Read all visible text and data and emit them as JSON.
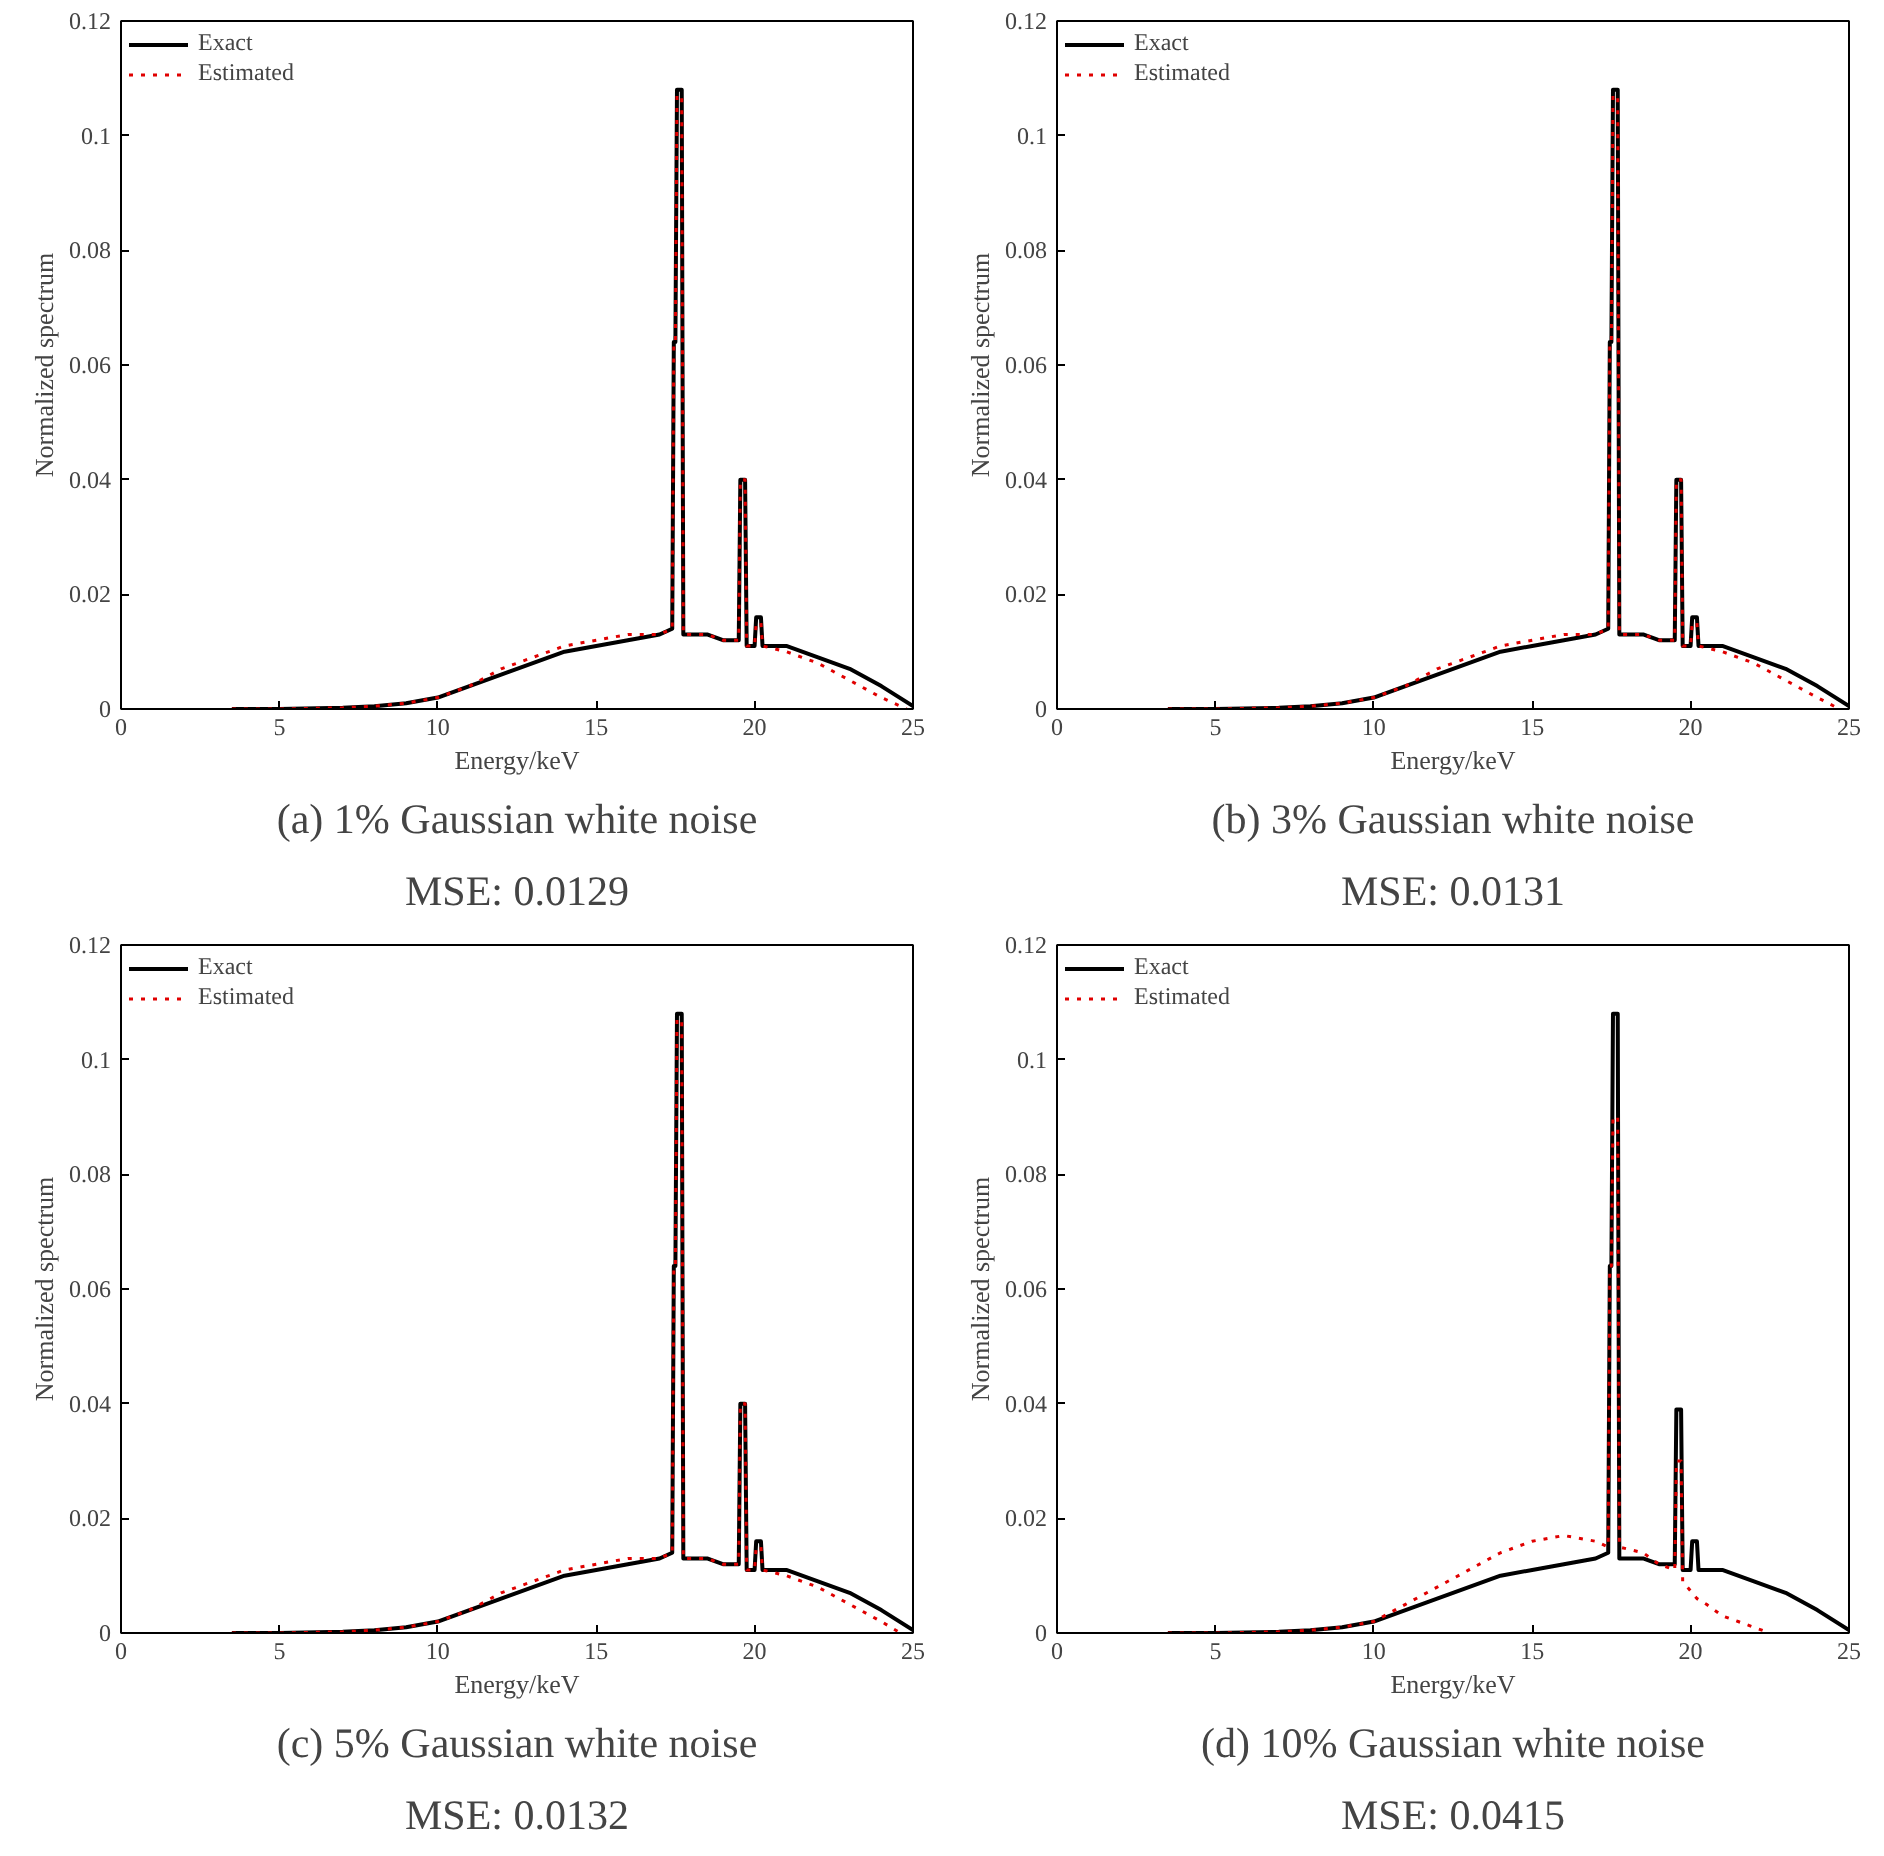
{
  "chart_data": [
    {
      "type": "line",
      "title": "(a) 1% Gaussian white noise",
      "subtitle": "MSE: 0.0129",
      "xlabel": "Energy/keV",
      "ylabel": "Normalized spectrum",
      "xlim": [
        0,
        25
      ],
      "xticks": [
        0,
        5,
        10,
        15,
        20,
        25
      ],
      "ylim": [
        0,
        0.12
      ],
      "yticks": [
        0,
        0.02,
        0.04,
        0.06,
        0.08,
        0.1,
        0.12
      ],
      "legend": "top left",
      "series": [
        {
          "name": "Exact",
          "color": "#000000",
          "line_style": "solid",
          "x": [
            3.5,
            5,
            7,
            8,
            9,
            10,
            11,
            12,
            13,
            14,
            15,
            16,
            17,
            17.4,
            17.45,
            17.5,
            17.55,
            17.7,
            17.75,
            18.5,
            19,
            19.5,
            19.55,
            19.7,
            19.75,
            20.0,
            20.05,
            20.2,
            20.25,
            21,
            22,
            23,
            24,
            25
          ],
          "values": [
            0,
            0,
            0.0002,
            0.0005,
            0.001,
            0.002,
            0.004,
            0.006,
            0.008,
            0.01,
            0.011,
            0.012,
            0.013,
            0.014,
            0.064,
            0.064,
            0.108,
            0.108,
            0.013,
            0.013,
            0.012,
            0.012,
            0.04,
            0.04,
            0.011,
            0.011,
            0.016,
            0.016,
            0.011,
            0.011,
            0.009,
            0.007,
            0.004,
            0.0005
          ]
        },
        {
          "name": "Estimated",
          "color": "#e00000",
          "line_style": "dotted",
          "x": [
            3.5,
            5,
            7,
            8,
            9,
            10,
            11,
            12,
            13,
            14,
            15,
            16,
            17,
            17.4,
            17.45,
            17.5,
            17.55,
            17.7,
            17.75,
            18.5,
            19,
            19.5,
            19.55,
            19.7,
            19.75,
            20.0,
            20.05,
            20.2,
            20.25,
            21,
            22,
            23,
            24,
            24.8
          ],
          "values": [
            0,
            0,
            0.0002,
            0.0005,
            0.001,
            0.002,
            0.004,
            0.007,
            0.009,
            0.011,
            0.012,
            0.013,
            0.013,
            0.014,
            0.064,
            0.064,
            0.107,
            0.107,
            0.013,
            0.013,
            0.012,
            0.012,
            0.04,
            0.04,
            0.011,
            0.011,
            0.015,
            0.015,
            0.011,
            0.01,
            0.008,
            0.005,
            0.002,
            0
          ]
        }
      ]
    },
    {
      "type": "line",
      "title": "(b) 3% Gaussian white noise",
      "subtitle": "MSE: 0.0131",
      "xlabel": "Energy/keV",
      "ylabel": "Normalized spectrum",
      "xlim": [
        0,
        25
      ],
      "xticks": [
        0,
        5,
        10,
        15,
        20,
        25
      ],
      "ylim": [
        0,
        0.12
      ],
      "yticks": [
        0,
        0.02,
        0.04,
        0.06,
        0.08,
        0.1,
        0.12
      ],
      "legend": "top left",
      "series": [
        {
          "name": "Exact",
          "color": "#000000",
          "line_style": "solid",
          "x": [
            3.5,
            5,
            7,
            8,
            9,
            10,
            11,
            12,
            13,
            14,
            15,
            16,
            17,
            17.4,
            17.45,
            17.5,
            17.55,
            17.7,
            17.75,
            18.5,
            19,
            19.5,
            19.55,
            19.7,
            19.75,
            20.0,
            20.05,
            20.2,
            20.25,
            21,
            22,
            23,
            24,
            25
          ],
          "values": [
            0,
            0,
            0.0002,
            0.0005,
            0.001,
            0.002,
            0.004,
            0.006,
            0.008,
            0.01,
            0.011,
            0.012,
            0.013,
            0.014,
            0.064,
            0.064,
            0.108,
            0.108,
            0.013,
            0.013,
            0.012,
            0.012,
            0.04,
            0.04,
            0.011,
            0.011,
            0.016,
            0.016,
            0.011,
            0.011,
            0.009,
            0.007,
            0.004,
            0.0005
          ]
        },
        {
          "name": "Estimated",
          "color": "#e00000",
          "line_style": "dotted",
          "x": [
            3.5,
            5,
            7,
            8,
            9,
            10,
            11,
            12,
            13,
            14,
            15,
            16,
            17,
            17.4,
            17.45,
            17.5,
            17.55,
            17.7,
            17.75,
            18.5,
            19,
            19.5,
            19.55,
            19.7,
            19.75,
            20.0,
            20.05,
            20.2,
            20.25,
            21,
            22,
            23,
            24,
            24.7
          ],
          "values": [
            0,
            0,
            0.0002,
            0.0005,
            0.001,
            0.002,
            0.004,
            0.007,
            0.009,
            0.011,
            0.012,
            0.013,
            0.013,
            0.014,
            0.064,
            0.064,
            0.107,
            0.107,
            0.013,
            0.013,
            0.012,
            0.012,
            0.04,
            0.04,
            0.011,
            0.011,
            0.015,
            0.015,
            0.011,
            0.01,
            0.008,
            0.005,
            0.002,
            0
          ]
        }
      ]
    },
    {
      "type": "line",
      "title": "(c) 5% Gaussian white noise",
      "subtitle": "MSE: 0.0132",
      "xlabel": "Energy/keV",
      "ylabel": "Normalized spectrum",
      "xlim": [
        0,
        25
      ],
      "xticks": [
        0,
        5,
        10,
        15,
        20,
        25
      ],
      "ylim": [
        0,
        0.12
      ],
      "yticks": [
        0,
        0.02,
        0.04,
        0.06,
        0.08,
        0.1,
        0.12
      ],
      "legend": "top left",
      "series": [
        {
          "name": "Exact",
          "color": "#000000",
          "line_style": "solid",
          "x": [
            3.5,
            5,
            7,
            8,
            9,
            10,
            11,
            12,
            13,
            14,
            15,
            16,
            17,
            17.4,
            17.45,
            17.5,
            17.55,
            17.7,
            17.75,
            18.5,
            19,
            19.5,
            19.55,
            19.7,
            19.75,
            20.0,
            20.05,
            20.2,
            20.25,
            21,
            22,
            23,
            24,
            25
          ],
          "values": [
            0,
            0,
            0.0002,
            0.0005,
            0.001,
            0.002,
            0.004,
            0.006,
            0.008,
            0.01,
            0.011,
            0.012,
            0.013,
            0.014,
            0.064,
            0.064,
            0.108,
            0.108,
            0.013,
            0.013,
            0.012,
            0.012,
            0.04,
            0.04,
            0.011,
            0.011,
            0.016,
            0.016,
            0.011,
            0.011,
            0.009,
            0.007,
            0.004,
            0.0005
          ]
        },
        {
          "name": "Estimated",
          "color": "#e00000",
          "line_style": "dotted",
          "x": [
            3.5,
            5,
            7,
            8,
            9,
            10,
            11,
            12,
            13,
            14,
            15,
            16,
            17,
            17.4,
            17.45,
            17.5,
            17.55,
            17.7,
            17.75,
            18.5,
            19,
            19.5,
            19.55,
            19.7,
            19.75,
            20.0,
            20.05,
            20.2,
            20.25,
            21,
            22,
            23,
            24,
            24.6
          ],
          "values": [
            0,
            0,
            0.0002,
            0.0005,
            0.001,
            0.002,
            0.004,
            0.007,
            0.009,
            0.011,
            0.012,
            0.013,
            0.013,
            0.014,
            0.064,
            0.064,
            0.107,
            0.107,
            0.013,
            0.013,
            0.012,
            0.012,
            0.04,
            0.04,
            0.011,
            0.011,
            0.015,
            0.015,
            0.011,
            0.01,
            0.008,
            0.005,
            0.002,
            0
          ]
        }
      ]
    },
    {
      "type": "line",
      "title": "(d) 10% Gaussian white noise",
      "subtitle": "MSE: 0.0415",
      "xlabel": "Energy/keV",
      "ylabel": "Normalized spectrum",
      "xlim": [
        0,
        25
      ],
      "xticks": [
        0,
        5,
        10,
        15,
        20,
        25
      ],
      "ylim": [
        0,
        0.12
      ],
      "yticks": [
        0,
        0.02,
        0.04,
        0.06,
        0.08,
        0.1,
        0.12
      ],
      "legend": "top left",
      "series": [
        {
          "name": "Exact",
          "color": "#000000",
          "line_style": "solid",
          "x": [
            3.5,
            5,
            7,
            8,
            9,
            10,
            11,
            12,
            13,
            14,
            15,
            16,
            17,
            17.4,
            17.45,
            17.5,
            17.55,
            17.7,
            17.75,
            18.5,
            19,
            19.5,
            19.55,
            19.7,
            19.75,
            20.0,
            20.05,
            20.2,
            20.25,
            21,
            22,
            23,
            24,
            25
          ],
          "values": [
            0,
            0,
            0.0002,
            0.0005,
            0.001,
            0.002,
            0.004,
            0.006,
            0.008,
            0.01,
            0.011,
            0.012,
            0.013,
            0.014,
            0.064,
            0.064,
            0.108,
            0.108,
            0.013,
            0.013,
            0.012,
            0.012,
            0.039,
            0.039,
            0.011,
            0.011,
            0.016,
            0.016,
            0.011,
            0.011,
            0.009,
            0.007,
            0.004,
            0.0005
          ]
        },
        {
          "name": "Estimated",
          "color": "#e00000",
          "line_style": "dotted",
          "x": [
            3.5,
            5,
            7,
            8,
            9,
            10,
            11,
            12,
            13,
            14,
            15,
            16,
            17,
            17.4,
            17.45,
            17.5,
            17.55,
            17.7,
            17.75,
            18.5,
            19,
            19.5,
            19.55,
            19.7,
            19.75,
            20.2,
            20.5,
            21,
            21.5,
            22,
            22.5
          ],
          "values": [
            0,
            0,
            0.0002,
            0.0005,
            0.001,
            0.002,
            0.005,
            0.008,
            0.011,
            0.014,
            0.016,
            0.017,
            0.016,
            0.015,
            0.064,
            0.064,
            0.09,
            0.09,
            0.015,
            0.014,
            0.012,
            0.011,
            0.03,
            0.03,
            0.009,
            0.006,
            0.005,
            0.003,
            0.002,
            0.001,
            0
          ]
        }
      ]
    }
  ]
}
